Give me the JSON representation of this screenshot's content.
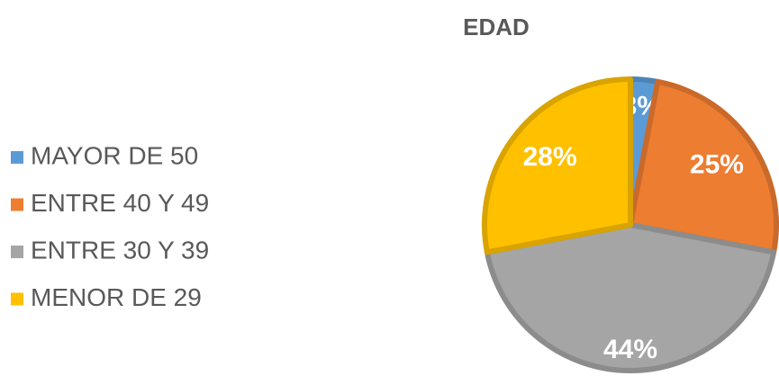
{
  "chart_data": {
    "type": "pie",
    "title": "EDAD",
    "categories": [
      "MAYOR DE 50",
      "ENTRE 40 Y 49",
      "ENTRE 30 Y 39",
      "MENOR DE 29"
    ],
    "values": [
      3,
      25,
      44,
      28
    ],
    "value_labels": [
      "3%",
      "25%",
      "44%",
      "28%"
    ],
    "colors": [
      "#5b9bd5",
      "#ed7d31",
      "#a5a5a5",
      "#ffc000"
    ],
    "legend": "left"
  }
}
